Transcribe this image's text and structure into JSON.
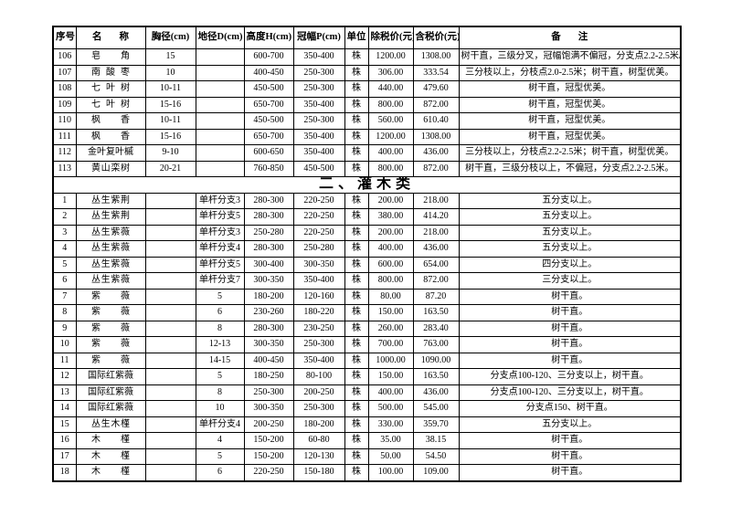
{
  "document": {
    "section_title": "二、灌木类"
  },
  "colors": {
    "border": "#000000",
    "text": "#000000",
    "background": "#ffffff"
  },
  "table": {
    "columns": [
      {
        "key": "no",
        "label": "序号",
        "name": "header-no",
        "justify": false
      },
      {
        "key": "name",
        "label": "名称",
        "name": "header-name",
        "justify": true
      },
      {
        "key": "dbh",
        "label": "胸径(cm)",
        "name": "header-dbh-cm",
        "justify": false
      },
      {
        "key": "ground_dia",
        "label": "地径D(cm)",
        "name": "header-ground-diameter",
        "justify": false
      },
      {
        "key": "height",
        "label": "高度H(cm)",
        "name": "header-height",
        "justify": false
      },
      {
        "key": "crown",
        "label": "冠幅P(cm)",
        "name": "header-crown-width",
        "justify": false
      },
      {
        "key": "unit",
        "label": "单位",
        "name": "header-unit",
        "justify": false
      },
      {
        "key": "price_ex",
        "label": "除税价(元)",
        "name": "header-price-excl-tax",
        "justify": false
      },
      {
        "key": "price_inc",
        "label": "含税价(元)",
        "name": "header-price-incl-tax",
        "justify": false
      },
      {
        "key": "remark",
        "label": "备注",
        "name": "header-remark",
        "justify": true
      }
    ],
    "tree_rows": [
      {
        "no": "106",
        "name": "皂角",
        "dbh": "15",
        "ground_dia": "",
        "height": "600-700",
        "crown": "350-400",
        "unit": "株",
        "price_ex": "1200.00",
        "price_inc": "1308.00",
        "remark": "树干直，三级分叉，冠幅饱满不偏冠，分支点2.2-2.5米。"
      },
      {
        "no": "107",
        "name": "南酸枣",
        "dbh": "10",
        "ground_dia": "",
        "height": "400-450",
        "crown": "250-300",
        "unit": "株",
        "price_ex": "306.00",
        "price_inc": "333.54",
        "remark": "三分枝以上，分枝点2.0-2.5米；树干直，树型优美。"
      },
      {
        "no": "108",
        "name": "七叶树",
        "dbh": "10-11",
        "ground_dia": "",
        "height": "450-500",
        "crown": "250-300",
        "unit": "株",
        "price_ex": "440.00",
        "price_inc": "479.60",
        "remark": "树干直，冠型优美。"
      },
      {
        "no": "109",
        "name": "七叶树",
        "dbh": "15-16",
        "ground_dia": "",
        "height": "650-700",
        "crown": "350-400",
        "unit": "株",
        "price_ex": "800.00",
        "price_inc": "872.00",
        "remark": "树干直，冠型优美。"
      },
      {
        "no": "110",
        "name": "枫香",
        "dbh": "10-11",
        "ground_dia": "",
        "height": "450-500",
        "crown": "250-300",
        "unit": "株",
        "price_ex": "560.00",
        "price_inc": "610.40",
        "remark": "树干直，冠型优美。"
      },
      {
        "no": "111",
        "name": "枫香",
        "dbh": "15-16",
        "ground_dia": "",
        "height": "650-700",
        "crown": "350-400",
        "unit": "株",
        "price_ex": "1200.00",
        "price_inc": "1308.00",
        "remark": "树干直，冠型优美。"
      },
      {
        "no": "112",
        "name": "金叶复叶槭",
        "dbh": "9-10",
        "ground_dia": "",
        "height": "600-650",
        "crown": "350-400",
        "unit": "株",
        "price_ex": "400.00",
        "price_inc": "436.00",
        "remark": "三分枝以上，分枝点2.2-2.5米；树干直，树型优美。"
      },
      {
        "no": "113",
        "name": "黄山栾树",
        "dbh": "20-21",
        "ground_dia": "",
        "height": "760-850",
        "crown": "450-500",
        "unit": "株",
        "price_ex": "800.00",
        "price_inc": "872.00",
        "remark": "树干直，三级分枝以上，不偏冠，分支点2.2-2.5米。"
      }
    ],
    "shrub_rows": [
      {
        "no": "1",
        "name": "丛生紫荆",
        "dbh": "",
        "ground_dia": "单杆分支3",
        "height": "280-300",
        "crown": "220-250",
        "unit": "株",
        "price_ex": "200.00",
        "price_inc": "218.00",
        "remark": "五分支以上。"
      },
      {
        "no": "2",
        "name": "丛生紫荆",
        "dbh": "",
        "ground_dia": "单杆分支5",
        "height": "280-300",
        "crown": "220-250",
        "unit": "株",
        "price_ex": "380.00",
        "price_inc": "414.20",
        "remark": "五分支以上。"
      },
      {
        "no": "3",
        "name": "丛生紫薇",
        "dbh": "",
        "ground_dia": "单杆分支3",
        "height": "250-280",
        "crown": "220-250",
        "unit": "株",
        "price_ex": "200.00",
        "price_inc": "218.00",
        "remark": "五分支以上。"
      },
      {
        "no": "4",
        "name": "丛生紫薇",
        "dbh": "",
        "ground_dia": "单杆分支4",
        "height": "280-300",
        "crown": "250-280",
        "unit": "株",
        "price_ex": "400.00",
        "price_inc": "436.00",
        "remark": "五分支以上。"
      },
      {
        "no": "5",
        "name": "丛生紫薇",
        "dbh": "",
        "ground_dia": "单杆分支5",
        "height": "300-400",
        "crown": "300-350",
        "unit": "株",
        "price_ex": "600.00",
        "price_inc": "654.00",
        "remark": "四分支以上。"
      },
      {
        "no": "6",
        "name": "丛生紫薇",
        "dbh": "",
        "ground_dia": "单杆分支7",
        "height": "300-350",
        "crown": "350-400",
        "unit": "株",
        "price_ex": "800.00",
        "price_inc": "872.00",
        "remark": "三分支以上。"
      },
      {
        "no": "7",
        "name": "紫薇",
        "dbh": "",
        "ground_dia": "5",
        "height": "180-200",
        "crown": "120-160",
        "unit": "株",
        "price_ex": "80.00",
        "price_inc": "87.20",
        "remark": "树干直。"
      },
      {
        "no": "8",
        "name": "紫薇",
        "dbh": "",
        "ground_dia": "6",
        "height": "230-260",
        "crown": "180-220",
        "unit": "株",
        "price_ex": "150.00",
        "price_inc": "163.50",
        "remark": "树干直。"
      },
      {
        "no": "9",
        "name": "紫薇",
        "dbh": "",
        "ground_dia": "8",
        "height": "280-300",
        "crown": "230-250",
        "unit": "株",
        "price_ex": "260.00",
        "price_inc": "283.40",
        "remark": "树干直。"
      },
      {
        "no": "10",
        "name": "紫薇",
        "dbh": "",
        "ground_dia": "12-13",
        "height": "300-350",
        "crown": "250-300",
        "unit": "株",
        "price_ex": "700.00",
        "price_inc": "763.00",
        "remark": "树干直。"
      },
      {
        "no": "11",
        "name": "紫薇",
        "dbh": "",
        "ground_dia": "14-15",
        "height": "400-450",
        "crown": "350-400",
        "unit": "株",
        "price_ex": "1000.00",
        "price_inc": "1090.00",
        "remark": "树干直。"
      },
      {
        "no": "12",
        "name": "国际红紫薇",
        "dbh": "",
        "ground_dia": "5",
        "height": "180-250",
        "crown": "80-100",
        "unit": "株",
        "price_ex": "150.00",
        "price_inc": "163.50",
        "remark": "分支点100-120、三分支以上，树干直。"
      },
      {
        "no": "13",
        "name": "国际红紫薇",
        "dbh": "",
        "ground_dia": "8",
        "height": "250-300",
        "crown": "200-250",
        "unit": "株",
        "price_ex": "400.00",
        "price_inc": "436.00",
        "remark": "分支点100-120、三分支以上，树干直。"
      },
      {
        "no": "14",
        "name": "国际红紫薇",
        "dbh": "",
        "ground_dia": "10",
        "height": "300-350",
        "crown": "250-300",
        "unit": "株",
        "price_ex": "500.00",
        "price_inc": "545.00",
        "remark": "分支点150、树干直。"
      },
      {
        "no": "15",
        "name": "丛生木槿",
        "dbh": "",
        "ground_dia": "单杆分支4",
        "height": "200-250",
        "crown": "180-200",
        "unit": "株",
        "price_ex": "330.00",
        "price_inc": "359.70",
        "remark": "五分支以上。"
      },
      {
        "no": "16",
        "name": "木槿",
        "dbh": "",
        "ground_dia": "4",
        "height": "150-200",
        "crown": "60-80",
        "unit": "株",
        "price_ex": "35.00",
        "price_inc": "38.15",
        "remark": "树干直。"
      },
      {
        "no": "17",
        "name": "木槿",
        "dbh": "",
        "ground_dia": "5",
        "height": "150-200",
        "crown": "120-130",
        "unit": "株",
        "price_ex": "50.00",
        "price_inc": "54.50",
        "remark": "树干直。"
      },
      {
        "no": "18",
        "name": "木槿",
        "dbh": "",
        "ground_dia": "6",
        "height": "220-250",
        "crown": "150-180",
        "unit": "株",
        "price_ex": "100.00",
        "price_inc": "109.00",
        "remark": "树干直。"
      }
    ]
  }
}
